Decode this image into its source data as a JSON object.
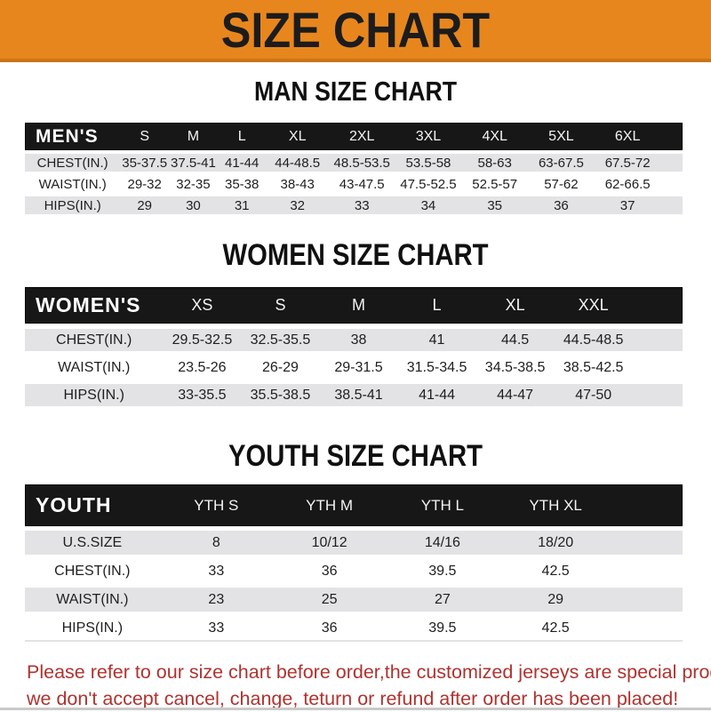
{
  "banner": {
    "title": "SIZE CHART"
  },
  "colors": {
    "banner_bg": "#E8861E",
    "banner_border": "#C9751A",
    "header_bar": "#171717",
    "row_gray": "#E3E3E5",
    "footer_red": "#AE332F"
  },
  "sections": [
    {
      "heading": "MAN SIZE CHART",
      "corner_label": "MEN'S",
      "columns": [
        "S",
        "M",
        "L",
        "XL",
        "2XL",
        "3XL",
        "4XL",
        "5XL",
        "6XL"
      ],
      "rows": [
        {
          "label": "CHEST(IN.)",
          "values": [
            "35-37.5",
            "37.5-41",
            "41-44",
            "44-48.5",
            "48.5-53.5",
            "53.5-58",
            "58-63",
            "63-67.5",
            "67.5-72"
          ]
        },
        {
          "label": "WAIST(IN.)",
          "values": [
            "29-32",
            "32-35",
            "35-38",
            "38-43",
            "43-47.5",
            "47.5-52.5",
            "52.5-57",
            "57-62",
            "62-66.5"
          ]
        },
        {
          "label": "HIPS(IN.)",
          "values": [
            "29",
            "30",
            "31",
            "32",
            "33",
            "34",
            "35",
            "36",
            "37"
          ]
        }
      ]
    },
    {
      "heading": "WOMEN SIZE CHART",
      "corner_label": "WOMEN'S",
      "columns": [
        "XS",
        "S",
        "M",
        "L",
        "XL",
        "XXL"
      ],
      "rows": [
        {
          "label": "CHEST(IN.)",
          "values": [
            "29.5-32.5",
            "32.5-35.5",
            "38",
            "41",
            "44.5",
            "44.5-48.5"
          ]
        },
        {
          "label": "WAIST(IN.)",
          "values": [
            "23.5-26",
            "26-29",
            "29-31.5",
            "31.5-34.5",
            "34.5-38.5",
            "38.5-42.5"
          ]
        },
        {
          "label": "HIPS(IN.)",
          "values": [
            "33-35.5",
            "35.5-38.5",
            "38.5-41",
            "41-44",
            "44-47",
            "47-50"
          ]
        }
      ]
    },
    {
      "heading": "YOUTH SIZE CHART",
      "corner_label": "YOUTH",
      "columns": [
        "YTH S",
        "YTH M",
        "YTH L",
        "YTH XL"
      ],
      "rows": [
        {
          "label": "U.S.SIZE",
          "values": [
            "8",
            "10/12",
            "14/16",
            "18/20"
          ]
        },
        {
          "label": "CHEST(IN.)",
          "values": [
            "33",
            "36",
            "39.5",
            "42.5"
          ]
        },
        {
          "label": "WAIST(IN.)",
          "values": [
            "23",
            "25",
            "27",
            "29"
          ]
        },
        {
          "label": "HIPS(IN.)",
          "values": [
            "33",
            "36",
            "39.5",
            "42.5"
          ]
        }
      ]
    }
  ],
  "footer": {
    "lines": [
      "Please refer to our size chart before order,the customized jerseys are special products,",
      "we don't accept cancel, change, teturn or refund after order has been placed!"
    ]
  }
}
